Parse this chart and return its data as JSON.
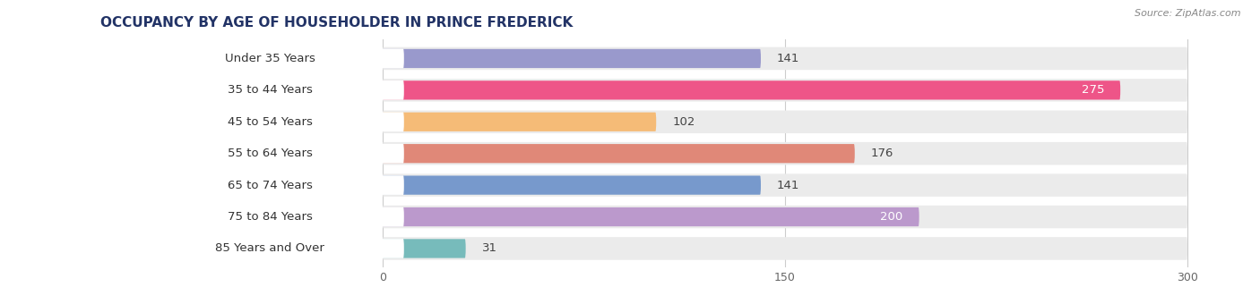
{
  "title": "OCCUPANCY BY AGE OF HOUSEHOLDER IN PRINCE FREDERICK",
  "source": "Source: ZipAtlas.com",
  "categories": [
    "Under 35 Years",
    "35 to 44 Years",
    "45 to 54 Years",
    "55 to 64 Years",
    "65 to 74 Years",
    "75 to 84 Years",
    "85 Years and Over"
  ],
  "values": [
    141,
    275,
    102,
    176,
    141,
    200,
    31
  ],
  "bar_colors": [
    "#9999cc",
    "#ee5588",
    "#f5bb77",
    "#e08878",
    "#7799cc",
    "#bb99cc",
    "#77bbbb"
  ],
  "bar_background": "#ebebeb",
  "background_color": "#ffffff",
  "label_bg": "#ffffff",
  "data_min": 0,
  "data_max": 300,
  "xticks": [
    0,
    150,
    300
  ],
  "title_fontsize": 11,
  "label_fontsize": 9.5,
  "value_fontsize": 9.5,
  "figsize": [
    14.06,
    3.4
  ],
  "dpi": 100
}
